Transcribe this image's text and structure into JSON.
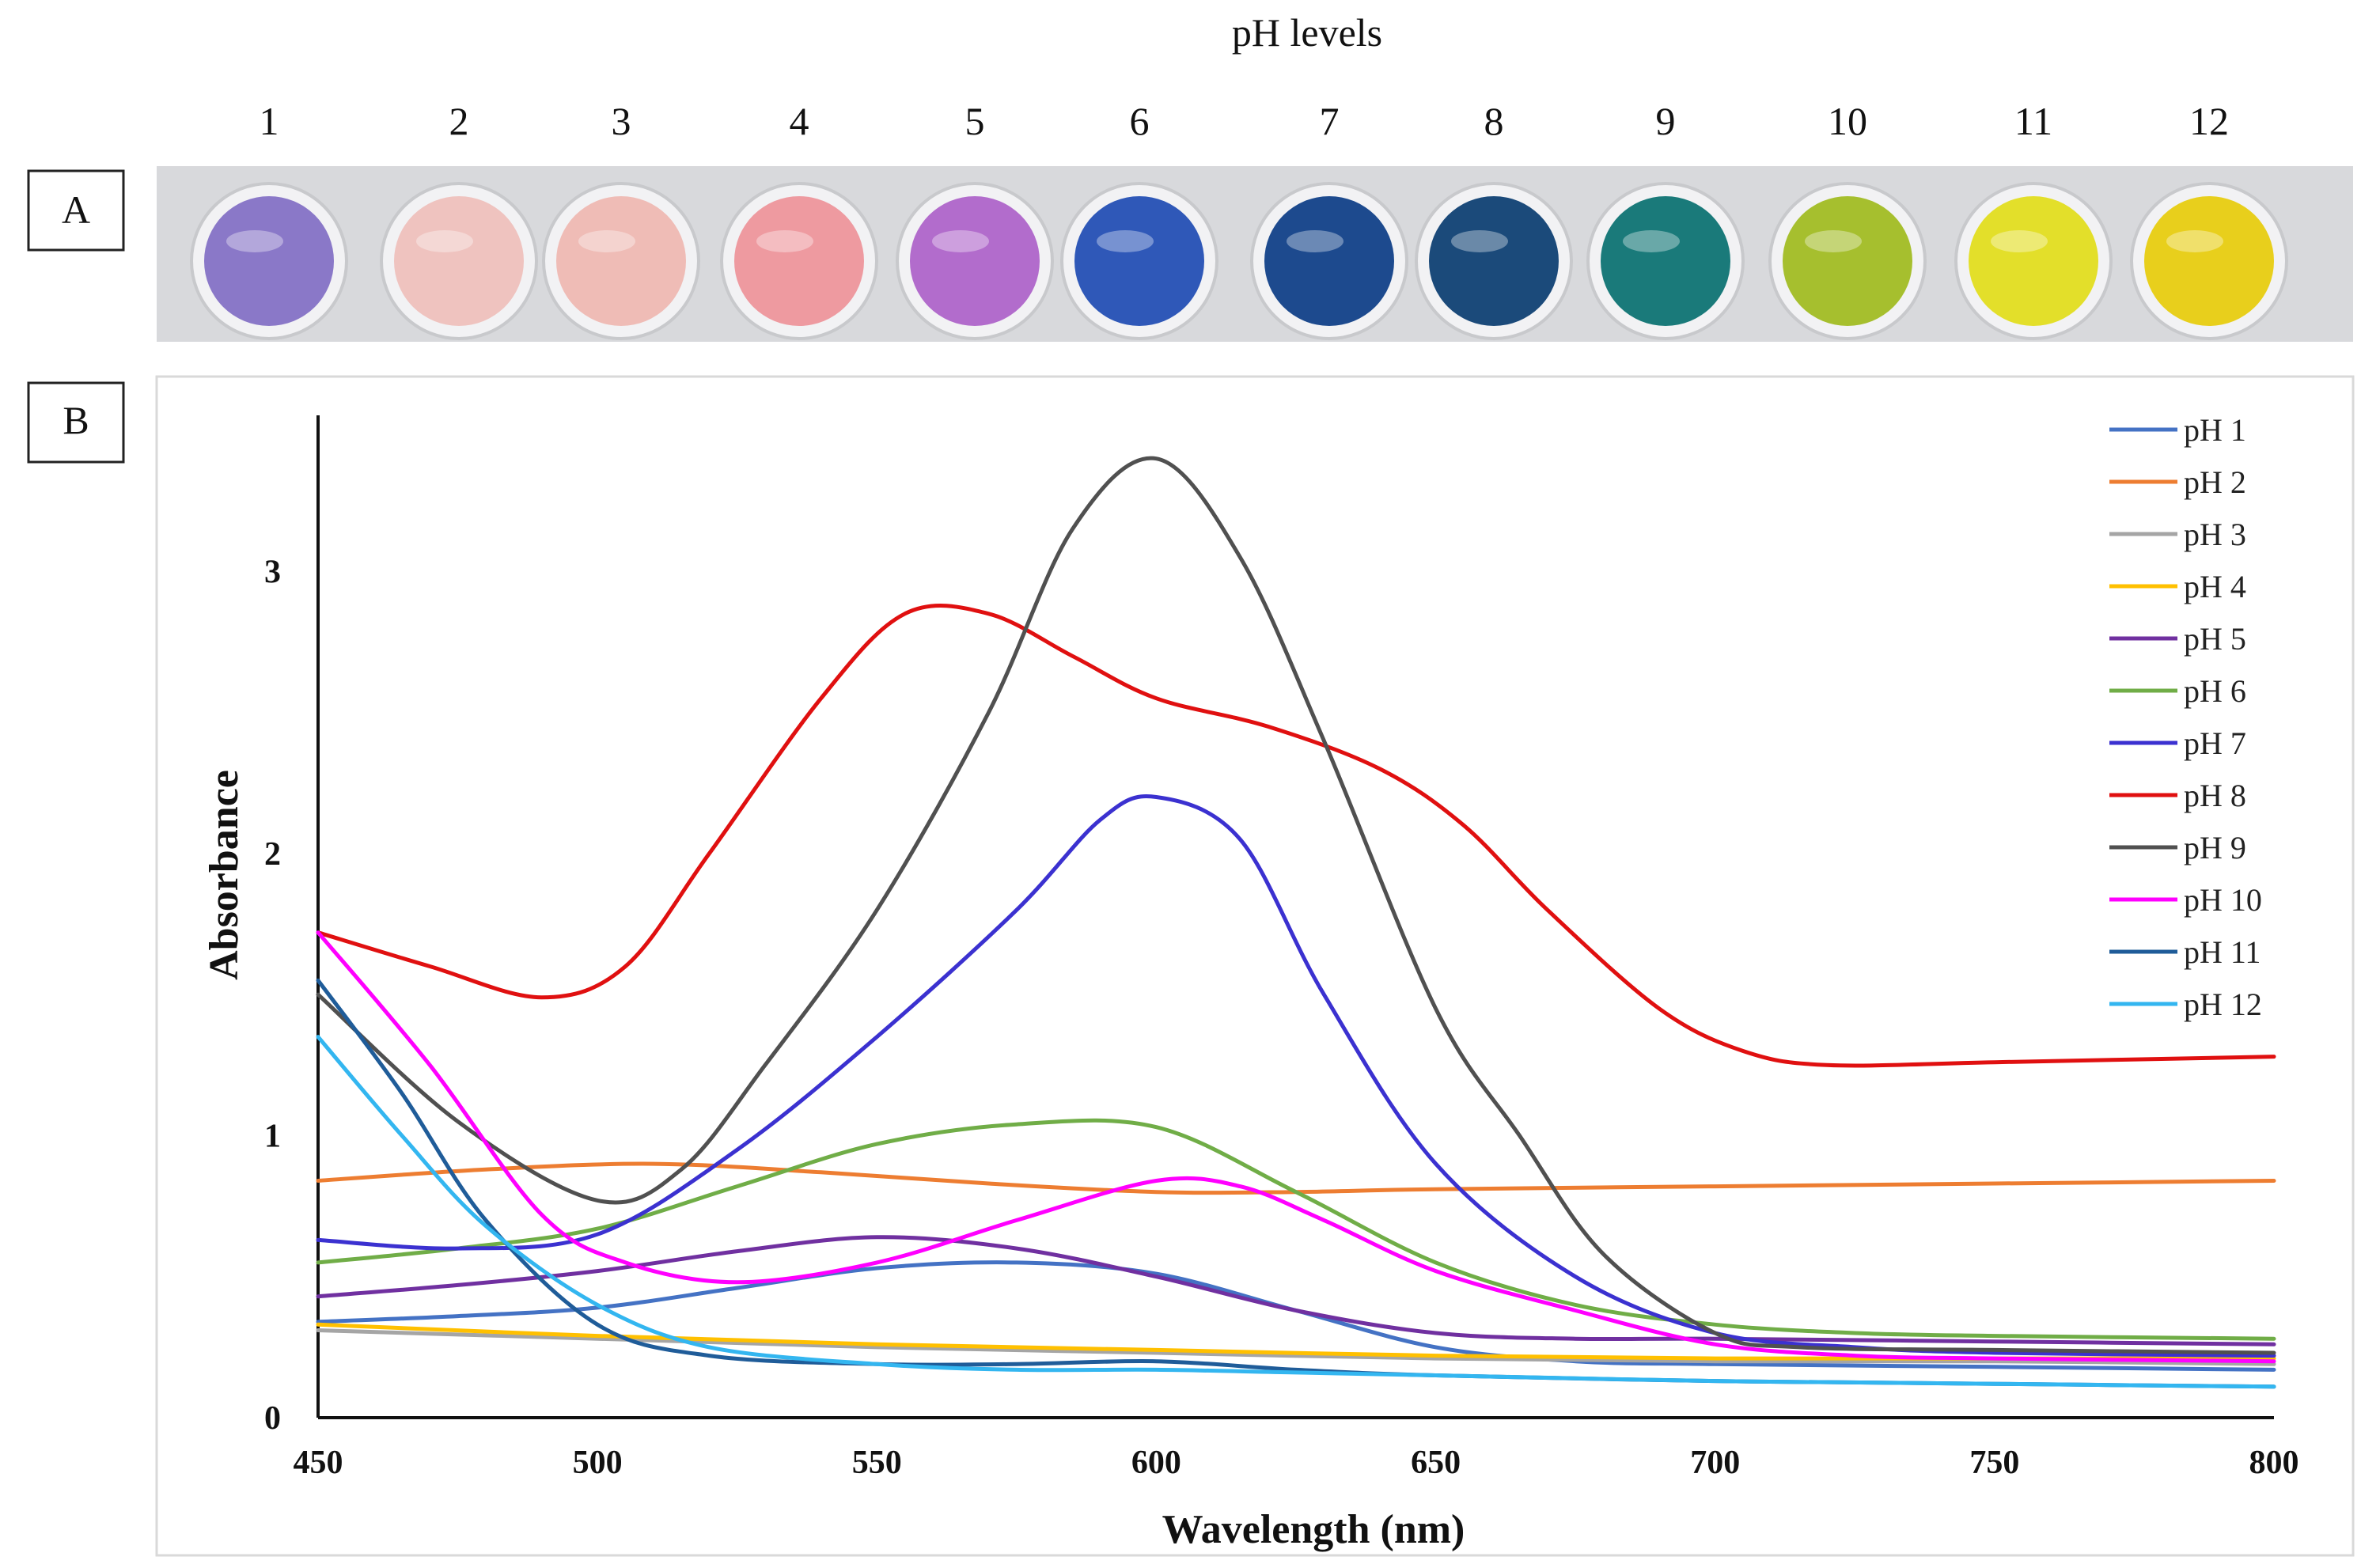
{
  "header": {
    "title": "pH levels"
  },
  "panels": {
    "a_label": "A",
    "b_label": "B"
  },
  "wells": [
    {
      "label": "1",
      "color": "#8a78c8"
    },
    {
      "label": "2",
      "color": "#efc3bf"
    },
    {
      "label": "3",
      "color": "#efbcb6"
    },
    {
      "label": "4",
      "color": "#ee9aa0"
    },
    {
      "label": "5",
      "color": "#b26ccc"
    },
    {
      "label": "6",
      "color": "#2f58b8"
    },
    {
      "label": "7",
      "color": "#1d4a8e"
    },
    {
      "label": "8",
      "color": "#1b4a7a"
    },
    {
      "label": "9",
      "color": "#1a7a7a"
    },
    {
      "label": "10",
      "color": "#a6bf2e"
    },
    {
      "label": "11",
      "color": "#e3df2a"
    },
    {
      "label": "12",
      "color": "#e8cf1c"
    }
  ],
  "chart_data": {
    "type": "line",
    "xlabel": "Wavelength (nm)",
    "ylabel": "Absorbance",
    "xlim": [
      450,
      800
    ],
    "ylim": [
      0,
      3.5
    ],
    "xticks": [
      450,
      500,
      550,
      600,
      650,
      700,
      750,
      800
    ],
    "yticks": [
      0,
      1,
      2,
      3
    ],
    "grid": false,
    "legend_position": "right",
    "series": [
      {
        "name": "pH 1",
        "color": "#4472c4",
        "x": [
          450,
          475,
          500,
          525,
          550,
          575,
          600,
          625,
          650,
          675,
          700,
          750,
          800
        ],
        "y": [
          0.34,
          0.36,
          0.39,
          0.46,
          0.53,
          0.55,
          0.51,
          0.38,
          0.25,
          0.2,
          0.19,
          0.18,
          0.17
        ]
      },
      {
        "name": "pH 2",
        "color": "#ed7d31",
        "x": [
          450,
          480,
          510,
          540,
          570,
          600,
          625,
          650,
          700,
          750,
          800
        ],
        "y": [
          0.84,
          0.88,
          0.9,
          0.87,
          0.83,
          0.8,
          0.8,
          0.81,
          0.82,
          0.83,
          0.84
        ]
      },
      {
        "name": "pH 3",
        "color": "#a5a5a5",
        "x": [
          450,
          500,
          550,
          600,
          650,
          700,
          750,
          800
        ],
        "y": [
          0.31,
          0.28,
          0.25,
          0.23,
          0.21,
          0.2,
          0.2,
          0.19
        ]
      },
      {
        "name": "pH 4",
        "color": "#ffc000",
        "x": [
          450,
          500,
          550,
          600,
          650,
          700,
          750,
          800
        ],
        "y": [
          0.33,
          0.29,
          0.26,
          0.24,
          0.22,
          0.21,
          0.21,
          0.21
        ]
      },
      {
        "name": "pH 5",
        "color": "#7030a0",
        "x": [
          450,
          475,
          500,
          525,
          550,
          575,
          600,
          625,
          650,
          675,
          700,
          750,
          800
        ],
        "y": [
          0.43,
          0.47,
          0.52,
          0.59,
          0.64,
          0.6,
          0.5,
          0.38,
          0.3,
          0.28,
          0.28,
          0.27,
          0.26
        ]
      },
      {
        "name": "pH 6",
        "color": "#70ad47",
        "x": [
          450,
          475,
          500,
          525,
          550,
          575,
          600,
          625,
          650,
          675,
          700,
          725,
          750,
          800
        ],
        "y": [
          0.55,
          0.6,
          0.67,
          0.82,
          0.97,
          1.04,
          1.03,
          0.8,
          0.55,
          0.4,
          0.33,
          0.3,
          0.29,
          0.28
        ]
      },
      {
        "name": "pH 7",
        "color": "#3b31d0",
        "x": [
          450,
          475,
          500,
          525,
          550,
          575,
          590,
          600,
          615,
          630,
          650,
          675,
          700,
          725,
          750,
          800
        ],
        "y": [
          0.63,
          0.6,
          0.65,
          0.95,
          1.35,
          1.8,
          2.12,
          2.2,
          2.05,
          1.5,
          0.9,
          0.5,
          0.3,
          0.25,
          0.23,
          0.22
        ]
      },
      {
        "name": "pH 8",
        "color": "#e01010",
        "x": [
          450,
          470,
          490,
          505,
          520,
          540,
          555,
          570,
          585,
          600,
          620,
          640,
          655,
          670,
          690,
          705,
          720,
          750,
          800
        ],
        "y": [
          1.72,
          1.6,
          1.49,
          1.6,
          2.0,
          2.55,
          2.85,
          2.85,
          2.7,
          2.55,
          2.45,
          2.3,
          2.1,
          1.8,
          1.45,
          1.3,
          1.25,
          1.26,
          1.28
        ]
      },
      {
        "name": "pH 9",
        "color": "#505050",
        "x": [
          450,
          475,
          500,
          515,
          530,
          550,
          570,
          585,
          600,
          615,
          630,
          650,
          665,
          680,
          700,
          715,
          750,
          800
        ],
        "y": [
          1.5,
          1.05,
          0.77,
          0.88,
          1.25,
          1.8,
          2.5,
          3.15,
          3.4,
          3.05,
          2.4,
          1.45,
          1.0,
          0.58,
          0.3,
          0.25,
          0.24,
          0.23
        ]
      },
      {
        "name": "pH 10",
        "color": "#ff00ff",
        "x": [
          450,
          470,
          490,
          505,
          525,
          550,
          575,
          600,
          615,
          630,
          650,
          675,
          700,
          725,
          750,
          800
        ],
        "y": [
          1.72,
          1.25,
          0.72,
          0.55,
          0.48,
          0.55,
          0.7,
          0.84,
          0.82,
          0.7,
          0.52,
          0.38,
          0.26,
          0.22,
          0.21,
          0.2
        ]
      },
      {
        "name": "pH 11",
        "color": "#1f5c99",
        "x": [
          450,
          465,
          480,
          500,
          520,
          550,
          575,
          600,
          625,
          650,
          700,
          750,
          800
        ],
        "y": [
          1.55,
          1.15,
          0.7,
          0.33,
          0.22,
          0.19,
          0.19,
          0.2,
          0.17,
          0.15,
          0.13,
          0.12,
          0.11
        ]
      },
      {
        "name": "pH 12",
        "color": "#33b6f0",
        "x": [
          450,
          465,
          480,
          500,
          520,
          550,
          575,
          600,
          625,
          650,
          700,
          750,
          800
        ],
        "y": [
          1.35,
          1.0,
          0.68,
          0.4,
          0.25,
          0.19,
          0.17,
          0.17,
          0.16,
          0.15,
          0.13,
          0.12,
          0.11
        ]
      }
    ]
  }
}
